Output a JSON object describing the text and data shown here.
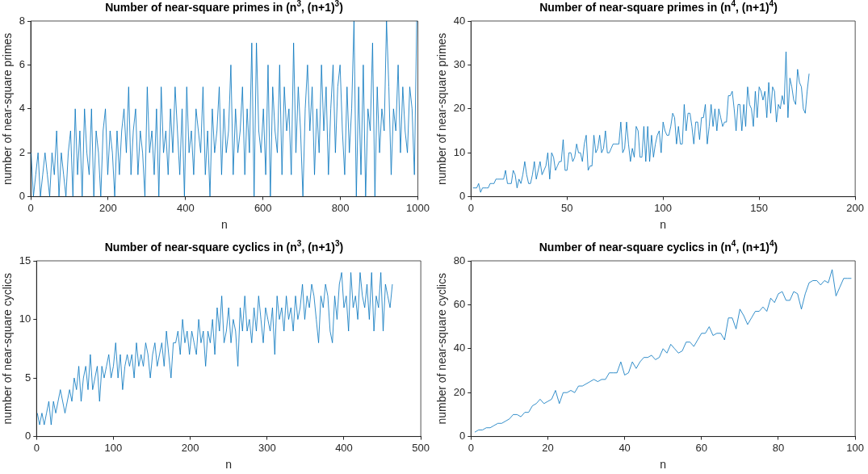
{
  "chart_data": [
    {
      "type": "line",
      "title": "Number of near-square primes in (n$^{3}$, (n+1)$^{3}$)",
      "xlabel": "n",
      "ylabel": "number of near-square primes",
      "color": "#0072bd",
      "xlim": [
        0,
        1000
      ],
      "ylim": [
        0,
        8
      ],
      "xticks": [
        0,
        200,
        400,
        600,
        800,
        1000
      ],
      "yticks": [
        0,
        2,
        4,
        6,
        8
      ],
      "x": [
        1,
        7,
        13,
        19,
        25,
        31,
        37,
        43,
        49,
        55,
        61,
        67,
        73,
        79,
        85,
        91,
        97,
        103,
        109,
        115,
        121,
        127,
        133,
        139,
        145,
        151,
        157,
        163,
        169,
        175,
        181,
        187,
        193,
        199,
        205,
        211,
        217,
        223,
        229,
        235,
        241,
        247,
        253,
        259,
        265,
        271,
        277,
        283,
        289,
        295,
        301,
        307,
        313,
        319,
        325,
        331,
        337,
        343,
        349,
        355,
        361,
        367,
        373,
        379,
        385,
        391,
        397,
        403,
        409,
        415,
        421,
        427,
        433,
        439,
        445,
        451,
        457,
        463,
        469,
        475,
        481,
        487,
        493,
        499,
        505,
        511,
        517,
        523,
        529,
        535,
        541,
        547,
        553,
        559,
        565,
        571,
        577,
        583,
        589,
        595,
        601,
        607,
        613,
        619,
        625,
        631,
        637,
        643,
        649,
        655,
        661,
        667,
        673,
        679,
        685,
        691,
        697,
        703,
        709,
        715,
        721,
        727,
        733,
        739,
        745,
        751,
        757,
        763,
        769,
        775,
        781,
        787,
        793,
        799,
        805,
        811,
        817,
        823,
        829,
        835,
        841,
        847,
        853,
        859,
        865,
        871,
        877,
        883,
        889,
        895,
        901,
        907,
        913,
        919,
        925,
        931,
        937,
        943,
        949,
        955,
        961,
        967,
        973,
        979,
        985,
        991,
        997
      ],
      "values": [
        2,
        0,
        1,
        2,
        0,
        1,
        2,
        1,
        0,
        2,
        1,
        3,
        0,
        2,
        1,
        0,
        2,
        3,
        0,
        4,
        1,
        3,
        0,
        4,
        2,
        1,
        4,
        0,
        3,
        2,
        0,
        3,
        4,
        1,
        3,
        2,
        0,
        3,
        1,
        3,
        4,
        2,
        5,
        1,
        3,
        4,
        1,
        3,
        2,
        0,
        5,
        2,
        3,
        1,
        4,
        0,
        5,
        2,
        3,
        1,
        4,
        2,
        5,
        3,
        1,
        4,
        0,
        5,
        2,
        3,
        1,
        4,
        3,
        2,
        5,
        1,
        3,
        0,
        4,
        2,
        3,
        5,
        1,
        4,
        2,
        3,
        6,
        1,
        4,
        2,
        3,
        5,
        1,
        4,
        2,
        7,
        0,
        7,
        3,
        2,
        4,
        1,
        6,
        0,
        5,
        3,
        2,
        6,
        1,
        5,
        3,
        4,
        1,
        7,
        2,
        5,
        3,
        0,
        4,
        6,
        3,
        5,
        1,
        4,
        2,
        6,
        3,
        5,
        1,
        4,
        6,
        2,
        5,
        6,
        3,
        1,
        5,
        2,
        4,
        8,
        0,
        5,
        1,
        6,
        0,
        4,
        3,
        7,
        0,
        5,
        2,
        4,
        3,
        8,
        5,
        1,
        4,
        3,
        6,
        2,
        5,
        3,
        2,
        5,
        4,
        1,
        8
      ]
    },
    {
      "type": "line",
      "title": "Number of near-square primes in (n$^{4}$, (n+1)$^{4}$)",
      "xlabel": "n",
      "ylabel": "number of near-square primes",
      "color": "#0072bd",
      "xlim": [
        0,
        200
      ],
      "ylim": [
        0,
        40
      ],
      "xticks": [
        0,
        50,
        100,
        150,
        200
      ],
      "yticks": [
        0,
        10,
        20,
        30,
        40
      ],
      "x": [
        1,
        2,
        3,
        4,
        5,
        6,
        7,
        8,
        9,
        10,
        11,
        12,
        13,
        14,
        15,
        16,
        17,
        18,
        19,
        20,
        21,
        22,
        23,
        24,
        25,
        26,
        27,
        28,
        29,
        30,
        31,
        32,
        33,
        34,
        35,
        36,
        37,
        38,
        39,
        40,
        41,
        42,
        43,
        44,
        45,
        46,
        47,
        48,
        49,
        50,
        51,
        52,
        53,
        54,
        55,
        56,
        57,
        58,
        59,
        60,
        61,
        62,
        63,
        64,
        65,
        66,
        67,
        68,
        69,
        70,
        71,
        72,
        73,
        74,
        75,
        76,
        77,
        78,
        79,
        80,
        81,
        82,
        83,
        84,
        85,
        86,
        87,
        88,
        89,
        90,
        91,
        92,
        93,
        94,
        95,
        96,
        97,
        98,
        99,
        100,
        101,
        102,
        103,
        104,
        105,
        106,
        107,
        108,
        109,
        110,
        111,
        112,
        113,
        114,
        115,
        116,
        117,
        118,
        119,
        120,
        121,
        122,
        123,
        124,
        125,
        126,
        127,
        128,
        129,
        130,
        131,
        132,
        133,
        134,
        135,
        136,
        137,
        138,
        139,
        140,
        141,
        142,
        143,
        144,
        145,
        146,
        147,
        148,
        149,
        150,
        151,
        152,
        153,
        154,
        155,
        156,
        157,
        158,
        159,
        160,
        161,
        162,
        163,
        164,
        165,
        166,
        167,
        168,
        169,
        170,
        171,
        172,
        173,
        174,
        175,
        176
      ],
      "values": [
        2,
        2,
        2,
        3,
        1,
        2,
        2,
        2,
        2,
        3,
        3,
        3,
        4,
        4,
        4,
        4,
        4,
        6,
        3,
        3,
        3,
        6,
        5,
        2,
        4,
        3,
        5,
        8,
        5,
        3,
        3,
        5,
        8,
        4,
        6,
        8,
        5,
        6,
        7,
        10,
        4,
        10,
        9,
        6,
        7,
        8,
        8,
        13,
        6,
        6,
        10,
        10,
        8,
        9,
        12,
        10,
        10,
        8,
        12,
        14,
        6,
        7,
        7,
        14,
        10,
        11,
        14,
        10,
        11,
        15,
        10,
        10,
        11,
        12,
        12,
        12,
        12,
        17,
        10,
        11,
        17,
        12,
        8,
        11,
        9,
        16,
        15,
        9,
        9,
        16,
        8,
        16,
        8,
        14,
        9,
        12,
        14,
        15,
        10,
        17,
        15,
        14,
        14,
        16,
        19,
        18,
        12,
        16,
        12,
        12,
        21,
        15,
        19,
        19,
        16,
        12,
        17,
        17,
        13,
        18,
        18,
        21,
        12,
        16,
        21,
        16,
        20,
        15,
        20,
        18,
        16,
        17,
        17,
        23,
        23,
        24,
        20,
        15,
        21,
        21,
        15,
        21,
        16,
        25,
        21,
        20,
        16,
        24,
        18,
        25,
        24,
        22,
        24,
        18,
        26,
        19,
        25,
        24,
        17,
        21,
        20,
        23,
        21,
        33,
        18,
        27,
        25,
        22,
        21,
        29,
        26,
        25,
        20,
        19,
        24,
        28
      ]
    },
    {
      "type": "line",
      "title": "Number of near-square cyclics in (n$^{3}$, (n+1)$^{3}$)",
      "xlabel": "n",
      "ylabel": "number of near-square cyclics",
      "color": "#0072bd",
      "xlim": [
        0,
        500
      ],
      "ylim": [
        0,
        15
      ],
      "xticks": [
        0,
        100,
        200,
        300,
        400,
        500
      ],
      "yticks": [
        0,
        5,
        10,
        15
      ],
      "x": [
        1,
        4,
        7,
        10,
        13,
        16,
        19,
        22,
        25,
        28,
        31,
        34,
        37,
        40,
        43,
        46,
        49,
        52,
        55,
        58,
        61,
        64,
        67,
        70,
        73,
        76,
        79,
        82,
        85,
        88,
        91,
        94,
        97,
        100,
        103,
        106,
        109,
        112,
        115,
        118,
        121,
        124,
        127,
        130,
        133,
        136,
        139,
        142,
        145,
        148,
        151,
        154,
        157,
        160,
        163,
        166,
        169,
        172,
        175,
        178,
        181,
        184,
        187,
        190,
        193,
        196,
        199,
        202,
        205,
        208,
        211,
        214,
        217,
        220,
        223,
        226,
        229,
        232,
        235,
        238,
        241,
        244,
        247,
        250,
        253,
        256,
        259,
        262,
        265,
        268,
        271,
        274,
        277,
        280,
        283,
        286,
        289,
        292,
        295,
        298,
        301,
        304,
        307,
        310,
        313,
        316,
        319,
        322,
        325,
        328,
        331,
        334,
        337,
        340,
        343,
        346,
        349,
        352,
        355,
        358,
        361,
        364,
        367,
        370,
        373,
        376,
        379,
        382,
        385,
        388,
        391,
        394,
        397,
        400,
        403,
        406,
        409,
        412,
        415,
        418,
        421,
        424,
        427,
        430,
        433,
        436,
        439,
        442,
        445,
        448,
        451,
        454,
        457,
        460,
        463
      ],
      "values": [
        2,
        1,
        2,
        1,
        2,
        3,
        1,
        3,
        2,
        3,
        4,
        3,
        2,
        3,
        4,
        3,
        5,
        4,
        6,
        3,
        5,
        6,
        4,
        7,
        4,
        5,
        6,
        3,
        6,
        5,
        6,
        7,
        5,
        6,
        8,
        5,
        7,
        4,
        6,
        7,
        6,
        7,
        5,
        8,
        6,
        7,
        6,
        8,
        7,
        5,
        7,
        8,
        6,
        7,
        8,
        6,
        9,
        7,
        5,
        8,
        8,
        9,
        7,
        10,
        8,
        9,
        7,
        9,
        8,
        7,
        10,
        8,
        9,
        6,
        9,
        8,
        10,
        7,
        11,
        9,
        12,
        8,
        9,
        11,
        8,
        10,
        9,
        6,
        11,
        9,
        12,
        9,
        10,
        8,
        11,
        9,
        12,
        10,
        8,
        11,
        10,
        9,
        11,
        7,
        12,
        10,
        11,
        9,
        12,
        10,
        11,
        9,
        12,
        10,
        11,
        13,
        10,
        12,
        11,
        13,
        12,
        10,
        8,
        12,
        11,
        13,
        12,
        9,
        8,
        12,
        10,
        13,
        14,
        11,
        12,
        9,
        14,
        11,
        12,
        10,
        14,
        12,
        11,
        13,
        10,
        14,
        9,
        12,
        11,
        14,
        9,
        13,
        12,
        11,
        13
      ]
    },
    {
      "type": "line",
      "title": "Number of near-square cyclics in (n$^{4}$, (n+1)$^{4}$)",
      "xlabel": "n",
      "ylabel": "number of near-square cyclics",
      "color": "#0072bd",
      "xlim": [
        0,
        100
      ],
      "ylim": [
        0,
        80
      ],
      "xticks": [
        0,
        20,
        40,
        60,
        80,
        100
      ],
      "yticks": [
        0,
        20,
        40,
        60,
        80
      ],
      "x": [
        1,
        2,
        3,
        4,
        5,
        6,
        7,
        8,
        9,
        10,
        11,
        12,
        13,
        14,
        15,
        16,
        17,
        18,
        19,
        20,
        21,
        22,
        23,
        24,
        25,
        26,
        27,
        28,
        29,
        30,
        31,
        32,
        33,
        34,
        35,
        36,
        37,
        38,
        39,
        40,
        41,
        42,
        43,
        44,
        45,
        46,
        47,
        48,
        49,
        50,
        51,
        52,
        53,
        54,
        55,
        56,
        57,
        58,
        59,
        60,
        61,
        62,
        63,
        64,
        65,
        66,
        67,
        68,
        69,
        70,
        71,
        72,
        73,
        74,
        75,
        76,
        77,
        78,
        79,
        80,
        81,
        82,
        83,
        84,
        85,
        86,
        87,
        88,
        89,
        90,
        91,
        92,
        93,
        94,
        95,
        96,
        97,
        98,
        99
      ],
      "values": [
        2,
        3,
        3,
        4,
        4,
        5,
        6,
        6,
        7,
        8,
        10,
        10,
        9,
        11,
        11,
        14,
        15,
        17,
        15,
        16,
        17,
        21,
        15,
        20,
        20,
        21,
        20,
        23,
        23,
        24,
        25,
        26,
        25,
        26,
        26,
        29,
        29,
        29,
        34,
        28,
        29,
        34,
        31,
        34,
        36,
        36,
        37,
        35,
        36,
        40,
        38,
        42,
        40,
        38,
        39,
        43,
        43,
        41,
        44,
        47,
        47,
        50,
        46,
        47,
        47,
        44,
        54,
        54,
        49,
        58,
        55,
        51,
        54,
        57,
        57,
        59,
        57,
        63,
        61,
        65,
        66,
        62,
        62,
        66,
        65,
        58,
        65,
        70,
        71,
        71,
        69,
        71,
        70,
        76,
        64,
        68,
        72,
        72,
        72
      ]
    }
  ]
}
